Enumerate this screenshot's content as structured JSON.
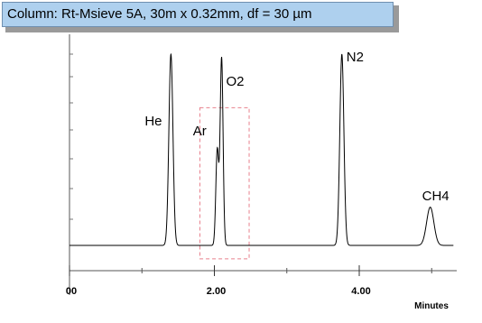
{
  "banner": {
    "text": "Column:  Rt-Msieve 5A, 30m x 0.32mm,  df = 30 µm",
    "background": "#aed0ee"
  },
  "chart_data": {
    "type": "line",
    "title": "",
    "xlabel": "Minutes",
    "ylabel": "",
    "xlim": [
      0,
      5.3
    ],
    "ylim": [
      0,
      100
    ],
    "x_ticks": [
      {
        "value": 0,
        "label": "00"
      },
      {
        "value": 2,
        "label": "2.00"
      },
      {
        "value": 4,
        "label": "4.00"
      }
    ],
    "baseline": 0,
    "grid": false,
    "legend": "none",
    "line_color": "#000000",
    "peaks": [
      {
        "name": "He",
        "time": 1.4,
        "height": 100,
        "width": 0.028
      },
      {
        "name": "Ar",
        "time": 2.04,
        "height": 50,
        "width": 0.02
      },
      {
        "name": "O2",
        "time": 2.1,
        "height": 98,
        "width": 0.02
      },
      {
        "name": "N2",
        "time": 3.76,
        "height": 100,
        "width": 0.028
      },
      {
        "name": "CH4",
        "time": 4.98,
        "height": 20,
        "width": 0.05
      }
    ],
    "annotations": [
      {
        "type": "dashed-box",
        "x_range": [
          1.8,
          2.48
        ],
        "y_range": [
          -7,
          72
        ],
        "color": "#e8808c"
      }
    ]
  }
}
